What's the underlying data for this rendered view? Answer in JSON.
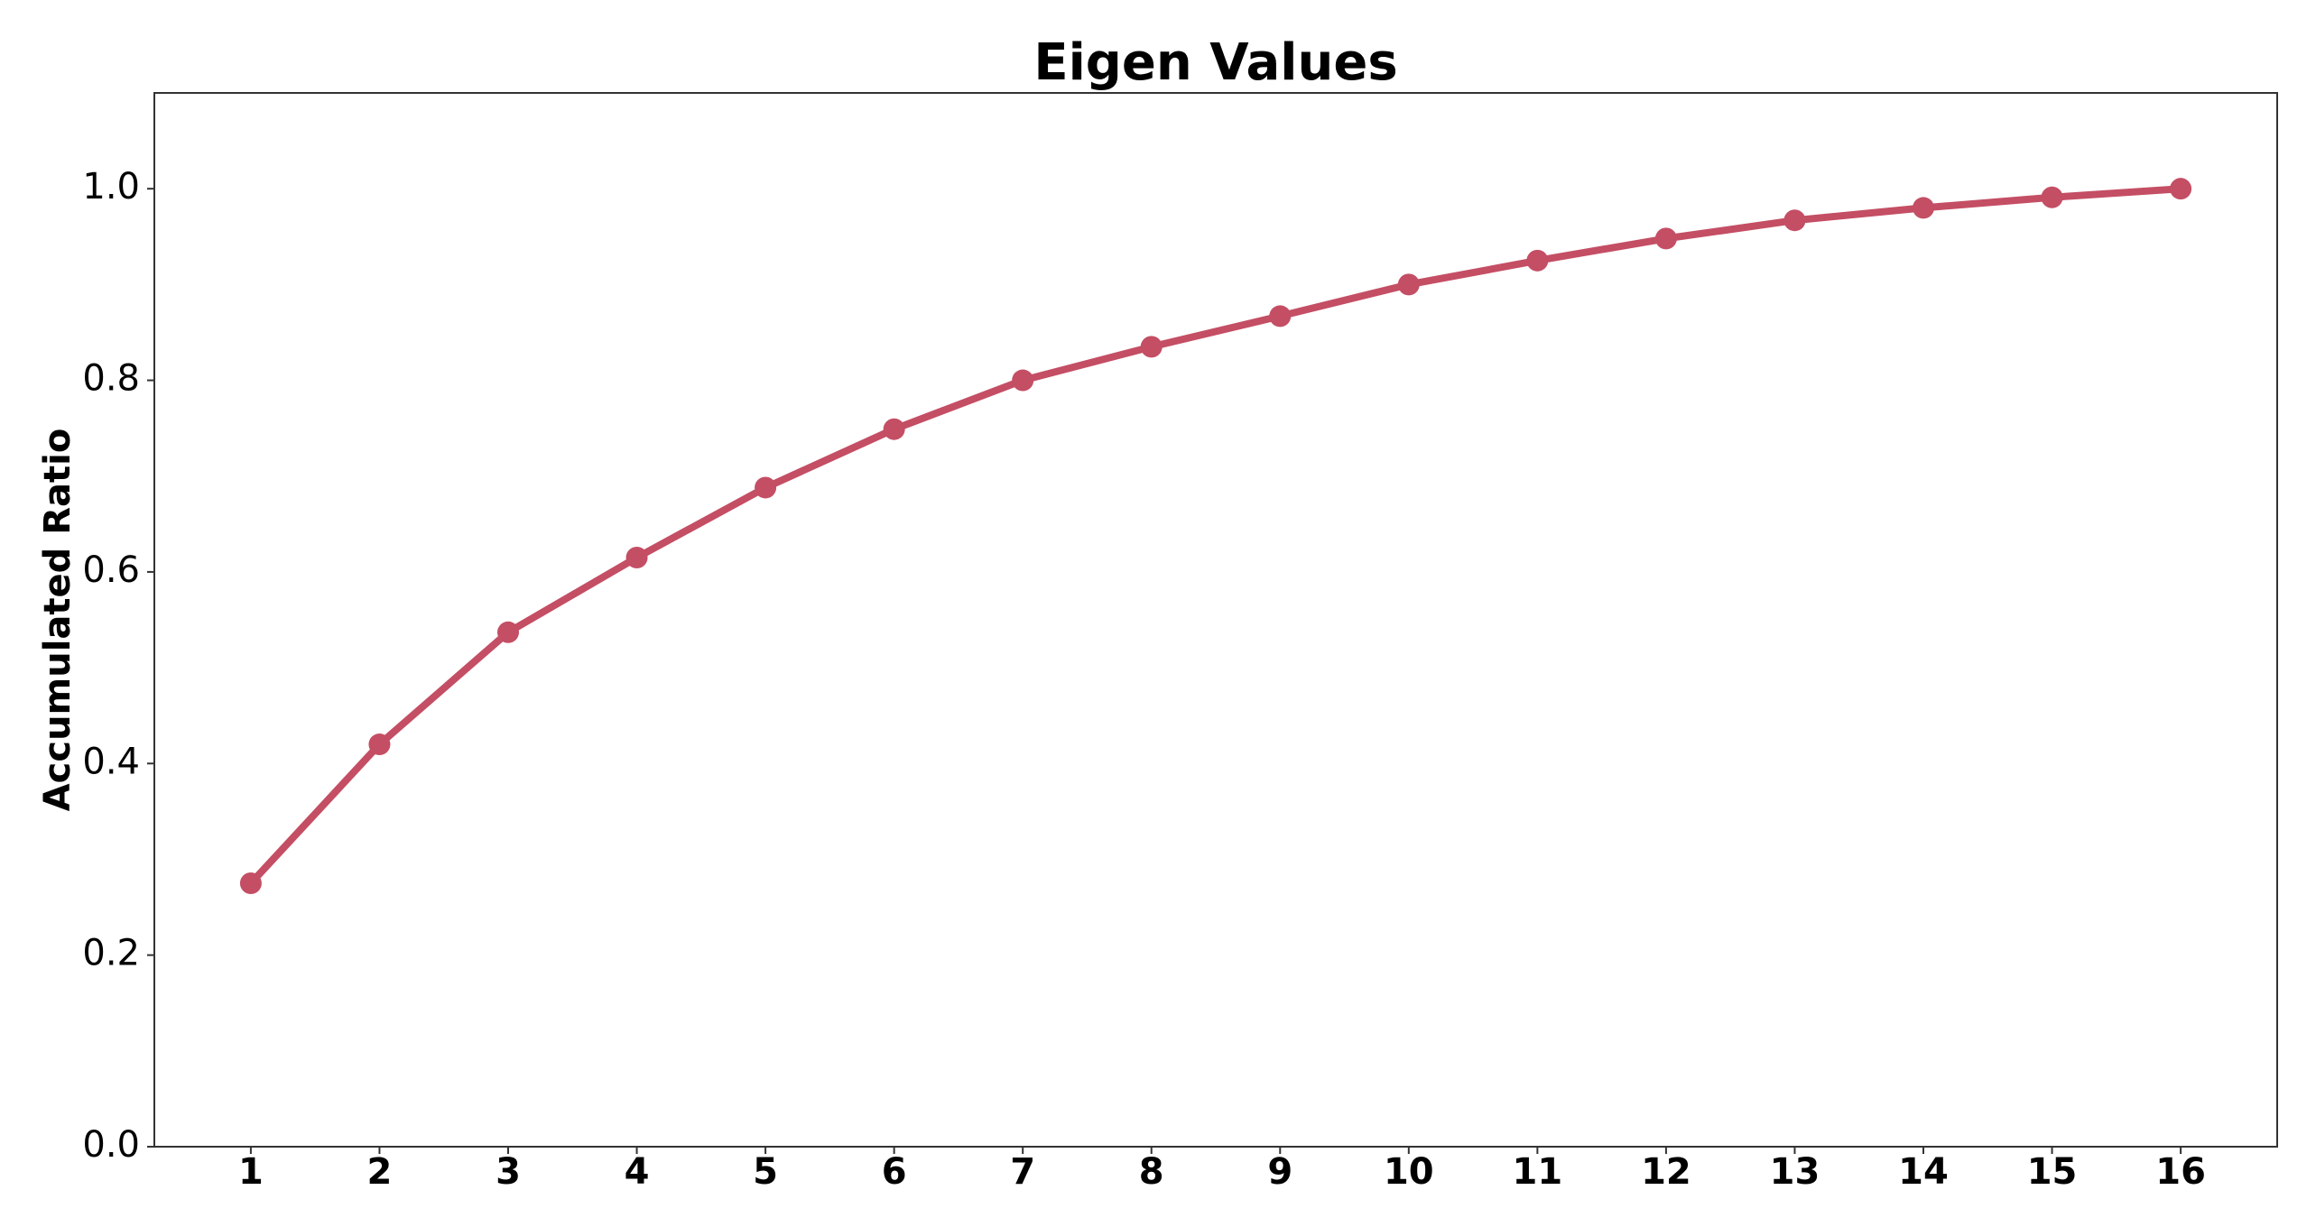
{
  "chart_data": {
    "type": "line",
    "title": "Eigen Values",
    "y_label": "Accumulated Ratio",
    "x": [
      1,
      2,
      3,
      4,
      5,
      6,
      7,
      8,
      9,
      10,
      11,
      12,
      13,
      14,
      15,
      16
    ],
    "series": [
      {
        "color": "#c44e64",
        "values": [
          0.275,
          0.42,
          0.537,
          0.615,
          0.688,
          0.749,
          0.8,
          0.835,
          0.867,
          0.9,
          0.925,
          0.948,
          0.967,
          0.98,
          0.991,
          1.0
        ]
      }
    ],
    "xlim": [
      0.25,
      16.75
    ],
    "xticks": [
      1,
      2,
      3,
      4,
      5,
      6,
      7,
      8,
      9,
      10,
      11,
      12,
      13,
      14,
      15,
      16
    ],
    "ylim": [
      0,
      1.1
    ],
    "yticks": [
      {
        "value": 0,
        "label": "0.0"
      },
      0.2,
      0.4,
      0.6,
      0.8,
      {
        "value": 1,
        "label": "1.0"
      }
    ],
    "grid": false
  }
}
